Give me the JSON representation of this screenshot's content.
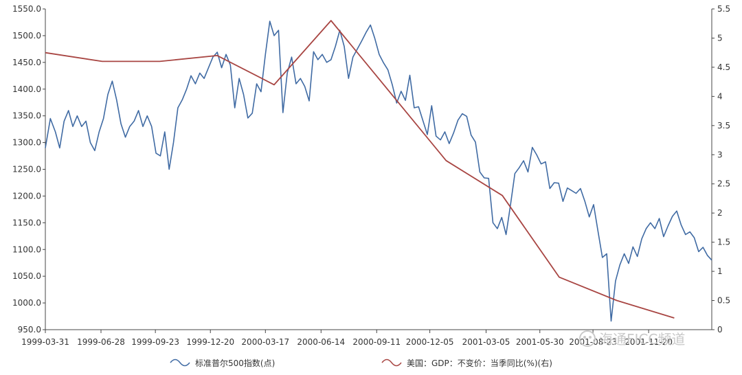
{
  "chart_data": {
    "type": "line",
    "x_tick_labels": [
      "1999-03-31",
      "1999-06-28",
      "1999-09-23",
      "1999-12-20",
      "2000-03-17",
      "2000-06-14",
      "2000-09-11",
      "2000-12-05",
      "2001-03-05",
      "2001-05-30",
      "2001-08-23",
      "2001-11-20"
    ],
    "left_axis": {
      "ylim": [
        950,
        1550
      ],
      "ticks": [
        "1550.0",
        "1500.0",
        "1450.0",
        "1400.0",
        "1350.0",
        "1300.0",
        "1250.0",
        "1200.0",
        "1150.0",
        "1100.0",
        "1050.0",
        "1000.0",
        "950.0"
      ]
    },
    "right_axis": {
      "ylim": [
        0,
        5.5
      ],
      "ticks": [
        "5.5",
        "5",
        "4.5",
        "4",
        "3.5",
        "3",
        "2.5",
        "2",
        "1.5",
        "1",
        "0.5",
        "0"
      ]
    },
    "series": [
      {
        "name": "标准普尔500指数(点)",
        "axis": "left",
        "color": "#3f6aa3",
        "points": [
          [
            "1999-03-31",
            1290
          ],
          [
            "1999-04-08",
            1345
          ],
          [
            "1999-04-16",
            1320
          ],
          [
            "1999-04-23",
            1290
          ],
          [
            "1999-04-30",
            1340
          ],
          [
            "1999-05-07",
            1360
          ],
          [
            "1999-05-14",
            1330
          ],
          [
            "1999-05-21",
            1350
          ],
          [
            "1999-05-28",
            1330
          ],
          [
            "1999-06-04",
            1340
          ],
          [
            "1999-06-11",
            1300
          ],
          [
            "1999-06-18",
            1285
          ],
          [
            "1999-06-25",
            1320
          ],
          [
            "1999-07-02",
            1345
          ],
          [
            "1999-07-09",
            1390
          ],
          [
            "1999-07-16",
            1415
          ],
          [
            "1999-07-23",
            1380
          ],
          [
            "1999-07-30",
            1335
          ],
          [
            "1999-08-06",
            1310
          ],
          [
            "1999-08-13",
            1330
          ],
          [
            "1999-08-20",
            1340
          ],
          [
            "1999-08-27",
            1360
          ],
          [
            "1999-09-03",
            1330
          ],
          [
            "1999-09-10",
            1350
          ],
          [
            "1999-09-17",
            1330
          ],
          [
            "1999-09-24",
            1280
          ],
          [
            "1999-10-01",
            1275
          ],
          [
            "1999-10-08",
            1320
          ],
          [
            "1999-10-15",
            1250
          ],
          [
            "1999-10-22",
            1300
          ],
          [
            "1999-10-29",
            1365
          ],
          [
            "1999-11-05",
            1380
          ],
          [
            "1999-11-12",
            1400
          ],
          [
            "1999-11-19",
            1425
          ],
          [
            "1999-11-26",
            1410
          ],
          [
            "1999-12-03",
            1430
          ],
          [
            "1999-12-10",
            1420
          ],
          [
            "1999-12-17",
            1440
          ],
          [
            "1999-12-24",
            1460
          ],
          [
            "1999-12-31",
            1469
          ],
          [
            "2000-01-07",
            1440
          ],
          [
            "2000-01-14",
            1465
          ],
          [
            "2000-01-21",
            1445
          ],
          [
            "2000-01-28",
            1365
          ],
          [
            "2000-02-04",
            1420
          ],
          [
            "2000-02-11",
            1390
          ],
          [
            "2000-02-18",
            1346
          ],
          [
            "2000-02-25",
            1355
          ],
          [
            "2000-03-03",
            1410
          ],
          [
            "2000-03-10",
            1395
          ],
          [
            "2000-03-17",
            1465
          ],
          [
            "2000-03-24",
            1527
          ],
          [
            "2000-03-31",
            1500
          ],
          [
            "2000-04-07",
            1510
          ],
          [
            "2000-04-14",
            1356
          ],
          [
            "2000-04-21",
            1430
          ],
          [
            "2000-04-28",
            1460
          ],
          [
            "2000-05-05",
            1410
          ],
          [
            "2000-05-12",
            1420
          ],
          [
            "2000-05-19",
            1405
          ],
          [
            "2000-05-26",
            1378
          ],
          [
            "2000-06-02",
            1470
          ],
          [
            "2000-06-09",
            1455
          ],
          [
            "2000-06-16",
            1465
          ],
          [
            "2000-06-23",
            1450
          ],
          [
            "2000-06-30",
            1455
          ],
          [
            "2000-07-07",
            1480
          ],
          [
            "2000-07-14",
            1510
          ],
          [
            "2000-07-21",
            1480
          ],
          [
            "2000-07-28",
            1420
          ],
          [
            "2000-08-04",
            1460
          ],
          [
            "2000-08-11",
            1475
          ],
          [
            "2000-08-18",
            1490
          ],
          [
            "2000-08-25",
            1506
          ],
          [
            "2000-09-01",
            1520
          ],
          [
            "2000-09-08",
            1495
          ],
          [
            "2000-09-15",
            1465
          ],
          [
            "2000-09-22",
            1449
          ],
          [
            "2000-09-29",
            1436
          ],
          [
            "2000-10-06",
            1408
          ],
          [
            "2000-10-13",
            1374
          ],
          [
            "2000-10-20",
            1396
          ],
          [
            "2000-10-27",
            1379
          ],
          [
            "2000-11-03",
            1426
          ],
          [
            "2000-11-10",
            1365
          ],
          [
            "2000-11-17",
            1367
          ],
          [
            "2000-11-24",
            1341
          ],
          [
            "2000-12-01",
            1315
          ],
          [
            "2000-12-08",
            1369
          ],
          [
            "2000-12-15",
            1312
          ],
          [
            "2000-12-22",
            1305
          ],
          [
            "2000-12-29",
            1320
          ],
          [
            "2001-01-05",
            1298
          ],
          [
            "2001-01-12",
            1318
          ],
          [
            "2001-01-19",
            1342
          ],
          [
            "2001-01-26",
            1354
          ],
          [
            "2001-02-02",
            1349
          ],
          [
            "2001-02-09",
            1314
          ],
          [
            "2001-02-16",
            1301
          ],
          [
            "2001-02-23",
            1245
          ],
          [
            "2001-03-02",
            1234
          ],
          [
            "2001-03-09",
            1233
          ],
          [
            "2001-03-16",
            1150
          ],
          [
            "2001-03-23",
            1139
          ],
          [
            "2001-03-30",
            1160
          ],
          [
            "2001-04-06",
            1128
          ],
          [
            "2001-04-13",
            1183
          ],
          [
            "2001-04-20",
            1242
          ],
          [
            "2001-04-27",
            1253
          ],
          [
            "2001-05-04",
            1266
          ],
          [
            "2001-05-11",
            1245
          ],
          [
            "2001-05-18",
            1291
          ],
          [
            "2001-05-25",
            1277
          ],
          [
            "2001-06-01",
            1260
          ],
          [
            "2001-06-08",
            1264
          ],
          [
            "2001-06-15",
            1214
          ],
          [
            "2001-06-22",
            1225
          ],
          [
            "2001-06-29",
            1224
          ],
          [
            "2001-07-06",
            1190
          ],
          [
            "2001-07-13",
            1215
          ],
          [
            "2001-07-20",
            1210
          ],
          [
            "2001-07-27",
            1205
          ],
          [
            "2001-08-03",
            1214
          ],
          [
            "2001-08-10",
            1190
          ],
          [
            "2001-08-17",
            1161
          ],
          [
            "2001-08-24",
            1184
          ],
          [
            "2001-08-31",
            1134
          ],
          [
            "2001-09-07",
            1085
          ],
          [
            "2001-09-14",
            1092
          ],
          [
            "2001-09-21",
            966
          ],
          [
            "2001-09-28",
            1041
          ],
          [
            "2001-10-05",
            1071
          ],
          [
            "2001-10-12",
            1092
          ],
          [
            "2001-10-19",
            1074
          ],
          [
            "2001-10-26",
            1105
          ],
          [
            "2001-11-02",
            1087
          ],
          [
            "2001-11-09",
            1120
          ],
          [
            "2001-11-16",
            1139
          ],
          [
            "2001-11-23",
            1150
          ],
          [
            "2001-11-30",
            1139
          ],
          [
            "2001-12-07",
            1158
          ],
          [
            "2001-12-14",
            1124
          ],
          [
            "2001-12-21",
            1144
          ],
          [
            "2001-12-28",
            1162
          ],
          [
            "2002-01-04",
            1172
          ],
          [
            "2002-01-11",
            1146
          ],
          [
            "2002-01-18",
            1128
          ],
          [
            "2002-01-25",
            1133
          ],
          [
            "2002-02-01",
            1122
          ],
          [
            "2002-02-08",
            1096
          ],
          [
            "2002-02-15",
            1104
          ],
          [
            "2002-02-22",
            1089
          ],
          [
            "2002-03-01",
            1080
          ]
        ]
      },
      {
        "name": "美国：GDP：不变价：当季同比(%)(右)",
        "axis": "right",
        "color": "#a84542",
        "points": [
          [
            "1999-03-31",
            4.75
          ],
          [
            "1999-06-30",
            4.6
          ],
          [
            "1999-09-30",
            4.6
          ],
          [
            "1999-12-31",
            4.7
          ],
          [
            "2000-03-31",
            4.2
          ],
          [
            "2000-06-30",
            5.3
          ],
          [
            "2000-09-30",
            4.1
          ],
          [
            "2000-12-31",
            2.9
          ],
          [
            "2001-03-31",
            2.3
          ],
          [
            "2001-06-30",
            0.9
          ],
          [
            "2001-09-30",
            0.5
          ],
          [
            "2001-12-31",
            0.2
          ]
        ]
      }
    ],
    "watermark": "海通FICC频道"
  }
}
